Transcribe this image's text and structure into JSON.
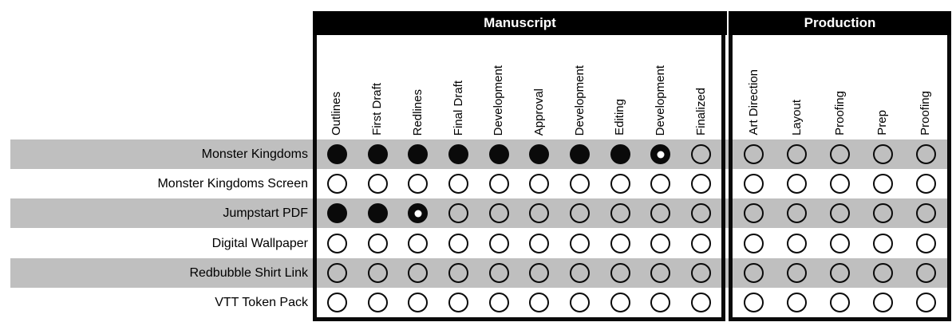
{
  "chart_data": {
    "type": "table",
    "description": "Project status tracker matrix with filled/partial/empty status circles",
    "groups": [
      {
        "label": "Manuscript",
        "columns": [
          "Outlines",
          "First Draft",
          "Redlines",
          "Final Draft",
          "Development",
          "Approval",
          "Development",
          "Editing",
          "Development",
          "Finalized"
        ]
      },
      {
        "label": "Production",
        "columns": [
          "Art Direction",
          "Layout",
          "Proofing",
          "Prep",
          "Proofing"
        ]
      }
    ],
    "rows": [
      {
        "label": "Monster Kingdoms",
        "cells": [
          [
            "filled",
            "filled",
            "filled",
            "filled",
            "filled",
            "filled",
            "filled",
            "filled",
            "partial",
            "empty"
          ],
          [
            "empty",
            "empty",
            "empty",
            "empty",
            "empty"
          ]
        ]
      },
      {
        "label": "Monster Kingdoms Screen",
        "cells": [
          [
            "empty",
            "empty",
            "empty",
            "empty",
            "empty",
            "empty",
            "empty",
            "empty",
            "empty",
            "empty"
          ],
          [
            "empty",
            "empty",
            "empty",
            "empty",
            "empty"
          ]
        ]
      },
      {
        "label": "Jumpstart PDF",
        "cells": [
          [
            "filled",
            "filled",
            "partial",
            "empty",
            "empty",
            "empty",
            "empty",
            "empty",
            "empty",
            "empty"
          ],
          [
            "empty",
            "empty",
            "empty",
            "empty",
            "empty"
          ]
        ]
      },
      {
        "label": "Digital Wallpaper",
        "cells": [
          [
            "empty",
            "empty",
            "empty",
            "empty",
            "empty",
            "empty",
            "empty",
            "empty",
            "empty",
            "empty"
          ],
          [
            "empty",
            "empty",
            "empty",
            "empty",
            "empty"
          ]
        ]
      },
      {
        "label": "Redbubble Shirt Link",
        "cells": [
          [
            "empty",
            "empty",
            "empty",
            "empty",
            "empty",
            "empty",
            "empty",
            "empty",
            "empty",
            "empty"
          ],
          [
            "empty",
            "empty",
            "empty",
            "empty",
            "empty"
          ]
        ]
      },
      {
        "label": "VTT Token Pack",
        "cells": [
          [
            "empty",
            "empty",
            "empty",
            "empty",
            "empty",
            "empty",
            "empty",
            "empty",
            "empty",
            "empty"
          ],
          [
            "empty",
            "empty",
            "empty",
            "empty",
            "empty"
          ]
        ]
      }
    ],
    "cell_state_glyphs": {
      "filled": "●",
      "partial": "◉",
      "empty": "○"
    },
    "layout_hints": {
      "row_banding": "odd rows shaded gray",
      "column_labels": "rotated 90deg"
    },
    "colors": {
      "band": "#bfbfbf",
      "header_bg": "#000000",
      "header_text": "#ffffff",
      "ink": "#0a0a0a",
      "background": "#ffffff"
    }
  }
}
